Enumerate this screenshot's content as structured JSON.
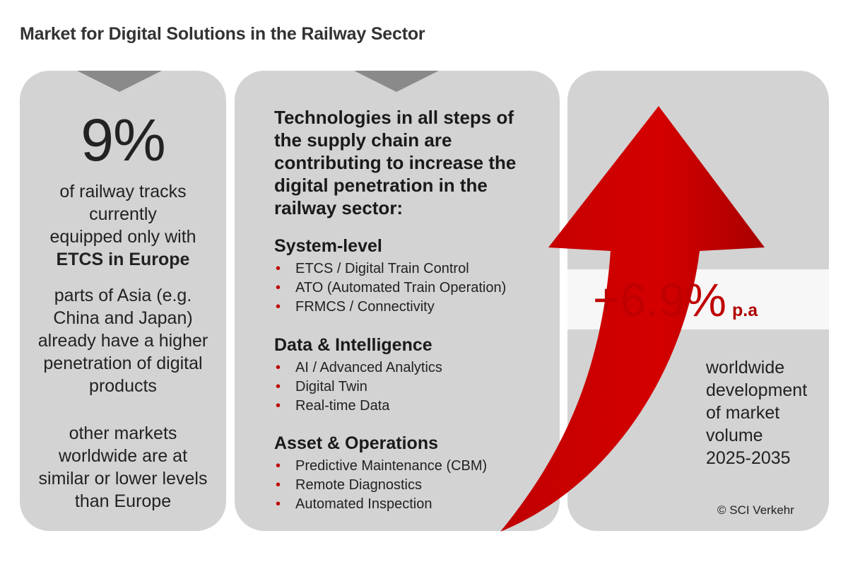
{
  "title": "Market for Digital Solutions in the Railway Sector",
  "left": {
    "stat": "9%",
    "desc_line1": "of railway tracks",
    "desc_line2": "currently",
    "desc_line3": "equipped only with",
    "desc_bold": "ETCS in Europe",
    "asia_lines": [
      "parts of Asia  (e.g.",
      "China and Japan)",
      "already have a higher",
      "penetration of digital",
      "products"
    ],
    "other_lines": [
      "other markets",
      "worldwide are at",
      "similar or lower levels",
      "than Europe"
    ]
  },
  "middle": {
    "heading_lines": [
      "Technologies in all steps of",
      "the supply chain are",
      "contributing to increase the",
      "digital penetration in the",
      "railway sector:"
    ],
    "categories": [
      {
        "title": "System-level",
        "items": [
          "ETCS / Digital Train Control",
          "ATO (Automated Train Operation)",
          "FRMCS / Connectivity"
        ]
      },
      {
        "title": "Data & Intelligence",
        "items": [
          "AI / Advanced Analytics",
          "Digital Twin",
          "Real-time Data"
        ]
      },
      {
        "title": "Asset & Operations",
        "items": [
          "Predictive Maintenance (CBM)",
          "Remote Diagnostics",
          "Automated Inspection"
        ]
      }
    ]
  },
  "right": {
    "growth": "+6.9%",
    "growth_unit": "p.a",
    "world_lines": [
      "worldwide",
      "development",
      "of market",
      "volume",
      "2025-2035"
    ],
    "copyright": "© SCI Verkehr"
  },
  "colors": {
    "panel": "#d3d3d3",
    "accent": "#c00000",
    "notch": "#8a8a8a"
  },
  "icons": {
    "arrow": "red-growth-arrow-icon",
    "notch": "down-chevron-notch"
  }
}
